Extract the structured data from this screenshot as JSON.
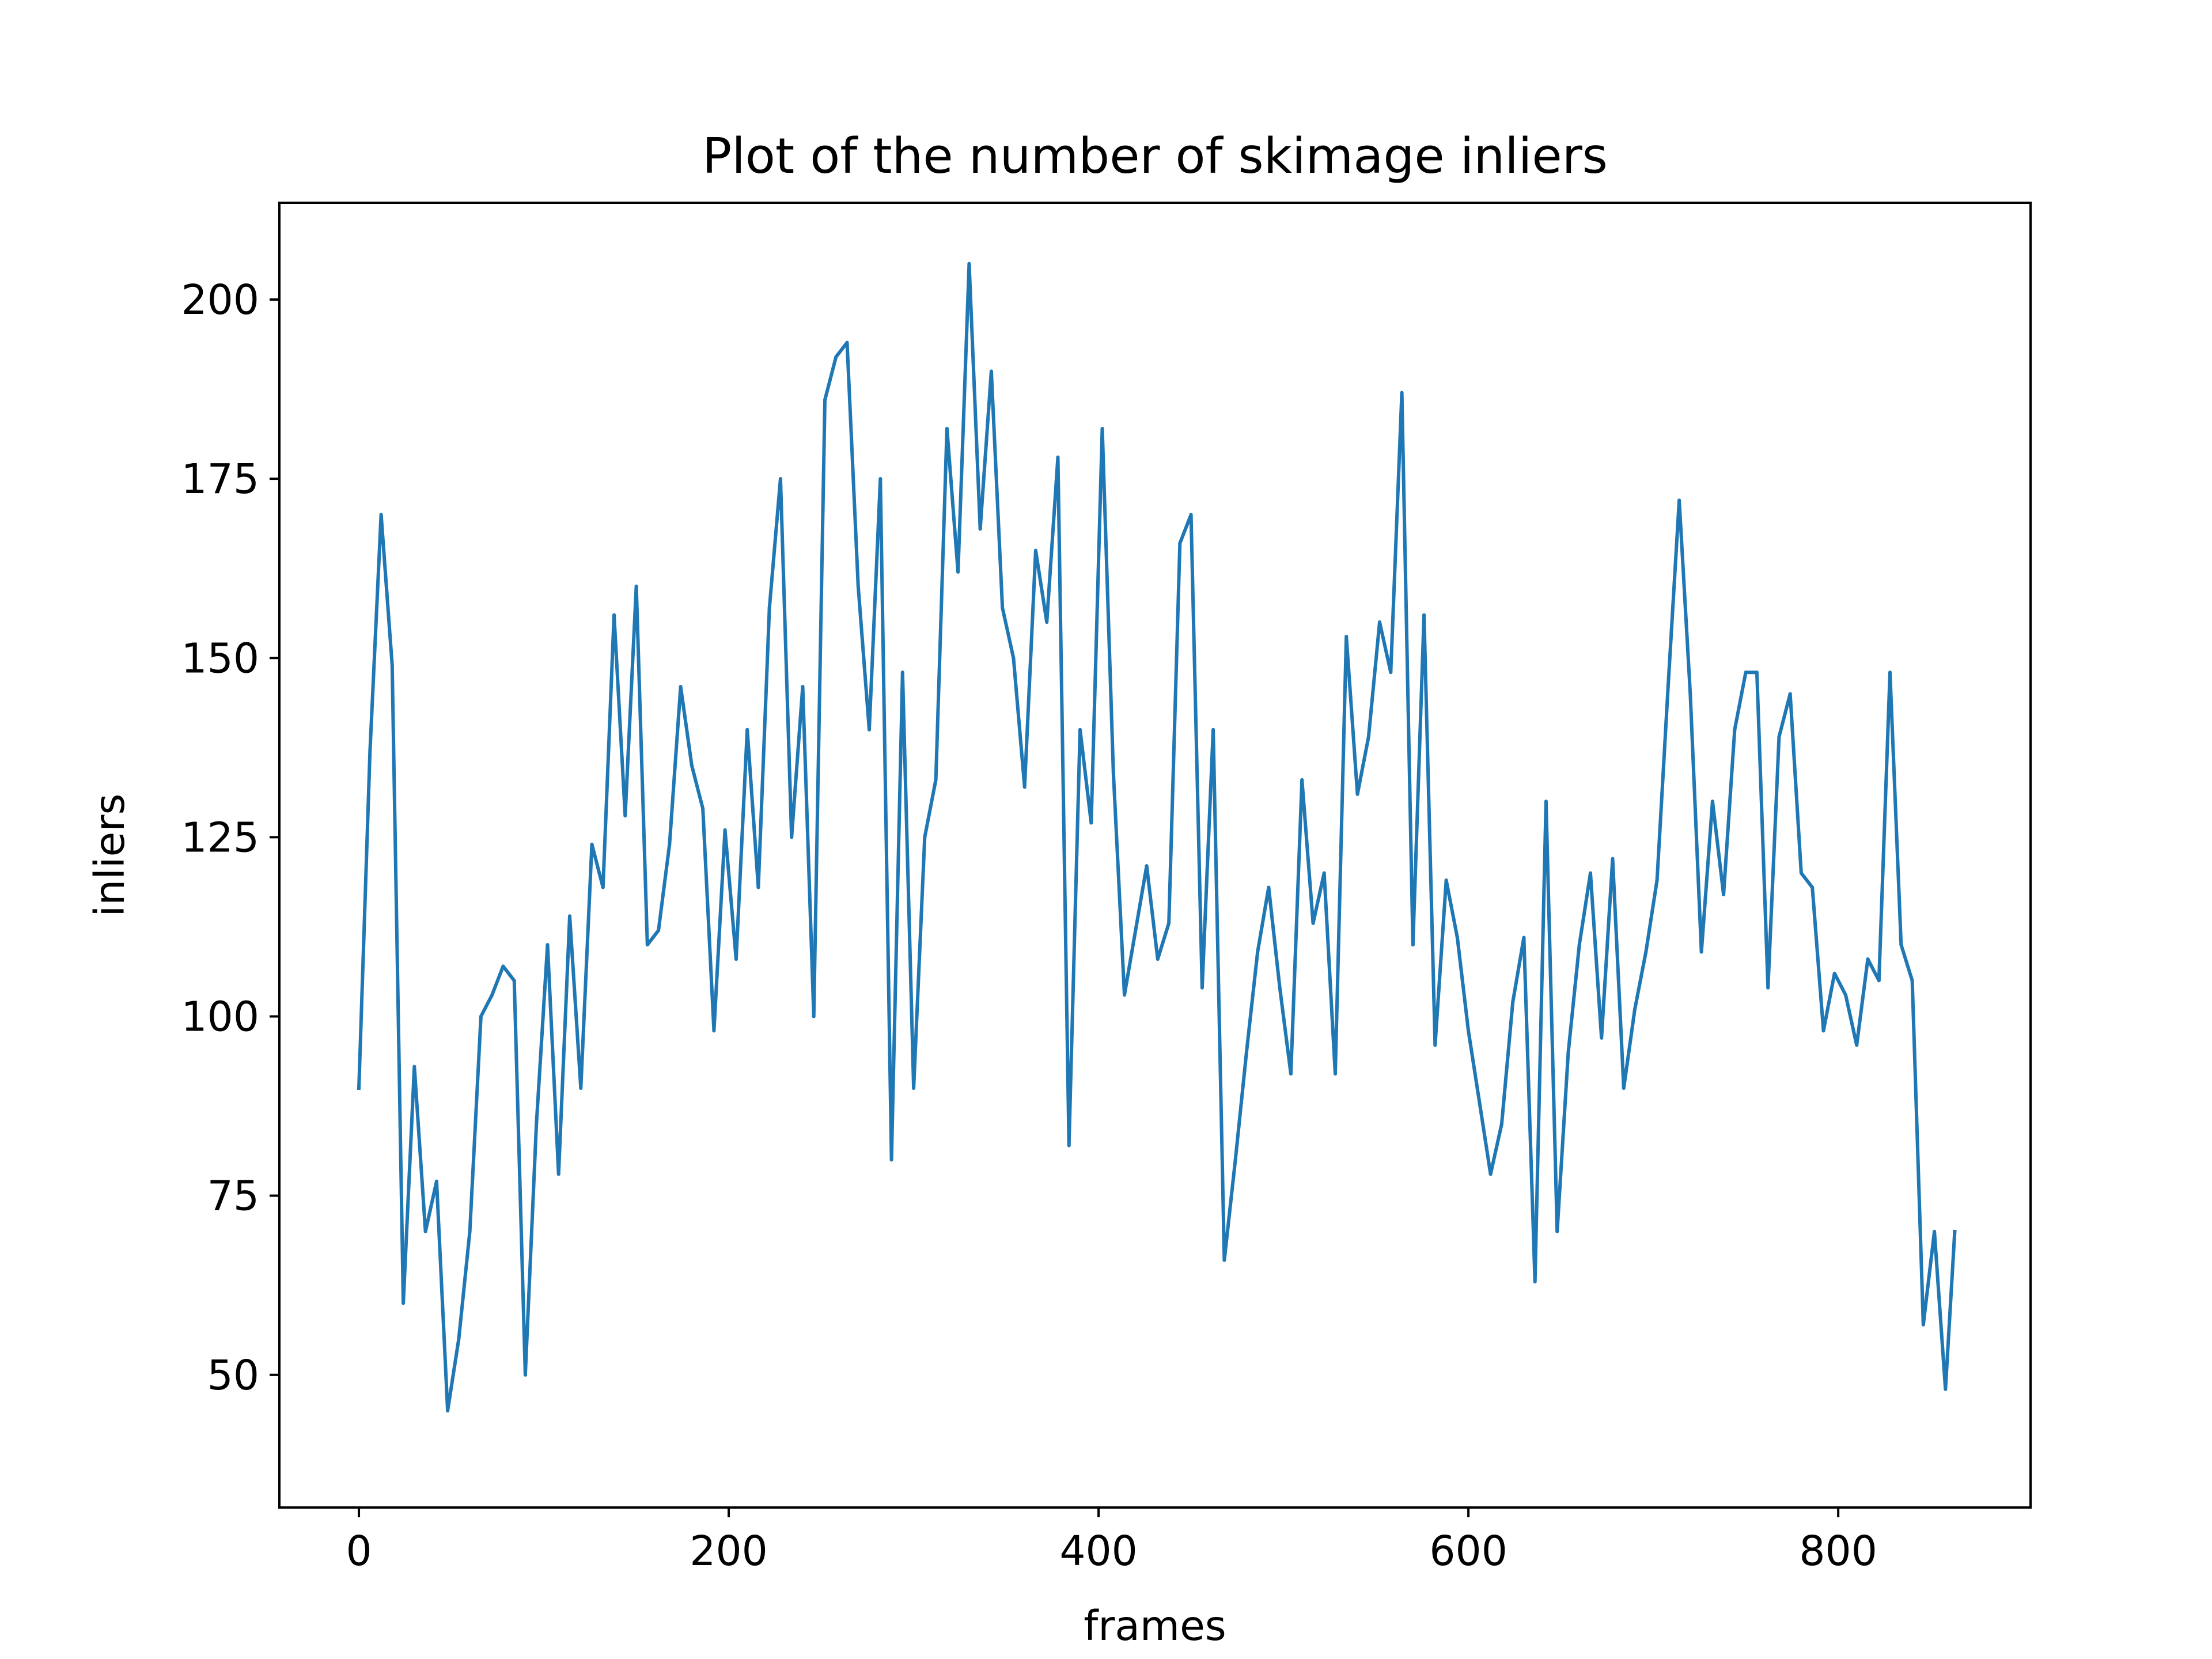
{
  "chart_data": {
    "type": "line",
    "title": "Plot of the number of skimage inliers",
    "xlabel": "frames",
    "ylabel": "inliers",
    "xlim": [
      -43,
      904
    ],
    "ylim": [
      31.5,
      213.5
    ],
    "xticks": [
      0,
      200,
      400,
      600,
      800
    ],
    "xtick_labels": [
      "0",
      "200",
      "400",
      "600",
      "800"
    ],
    "yticks": [
      50,
      75,
      100,
      125,
      150,
      175,
      200
    ],
    "ytick_labels": [
      "50",
      "75",
      "100",
      "125",
      "150",
      "175",
      "200"
    ],
    "grid": false,
    "legend": "none",
    "line_color": "#1f77b4",
    "series": [
      {
        "x": [
          0,
          6,
          12,
          18,
          24,
          30,
          36,
          42,
          48,
          54,
          60,
          66,
          72,
          78,
          84,
          90,
          96,
          102,
          108,
          114,
          120,
          126,
          132,
          138,
          144,
          150,
          156,
          162,
          168,
          174,
          180,
          186,
          192,
          198,
          204,
          210,
          216,
          222,
          228,
          234,
          240,
          246,
          252,
          258,
          264,
          270,
          276,
          282,
          288,
          294,
          300,
          306,
          312,
          318,
          324,
          330,
          336,
          342,
          348,
          354,
          360,
          366,
          372,
          378,
          384,
          390,
          396,
          402,
          408,
          414,
          420,
          426,
          432,
          438,
          444,
          450,
          456,
          462,
          468,
          474,
          480,
          486,
          492,
          498,
          504,
          510,
          516,
          522,
          528,
          534,
          540,
          546,
          552,
          558,
          564,
          570,
          576,
          582,
          588,
          594,
          600,
          606,
          612,
          618,
          624,
          630,
          636,
          642,
          648,
          654,
          660,
          666,
          672,
          678,
          684,
          690,
          696,
          702,
          708,
          714,
          720,
          726,
          732,
          738,
          744,
          750,
          756,
          762,
          768,
          774,
          780,
          786,
          792,
          798,
          804,
          810,
          816,
          822,
          828,
          834,
          840,
          846,
          852,
          858,
          863
        ],
        "values": [
          90,
          137,
          170,
          149,
          60,
          93,
          70,
          77,
          45,
          55,
          70,
          100,
          103,
          107,
          105,
          50,
          85,
          110,
          78,
          114,
          90,
          124,
          118,
          156,
          128,
          160,
          110,
          112,
          124,
          146,
          135,
          129,
          98,
          126,
          108,
          140,
          118,
          157,
          175,
          125,
          146,
          100,
          186,
          192,
          194,
          160,
          140,
          175,
          80,
          148,
          90,
          125,
          133,
          182,
          162,
          205,
          168,
          190,
          157,
          150,
          132,
          165,
          155,
          178,
          82,
          140,
          127,
          182,
          134,
          103,
          112,
          121,
          108,
          113,
          166,
          170,
          104,
          140,
          66,
          80,
          95,
          109,
          118,
          104,
          92,
          133,
          113,
          120,
          92,
          153,
          131,
          139,
          155,
          148,
          187,
          110,
          156,
          96,
          119,
          111,
          98,
          88,
          78,
          85,
          102,
          111,
          63,
          130,
          70,
          95,
          110,
          120,
          97,
          122,
          90,
          101,
          109,
          119,
          146,
          172,
          145,
          109,
          130,
          117,
          140,
          148,
          148,
          104,
          139,
          145,
          120,
          118,
          98,
          106,
          103,
          96,
          108,
          105,
          148,
          110,
          105,
          57,
          70,
          48,
          70
        ]
      }
    ]
  }
}
